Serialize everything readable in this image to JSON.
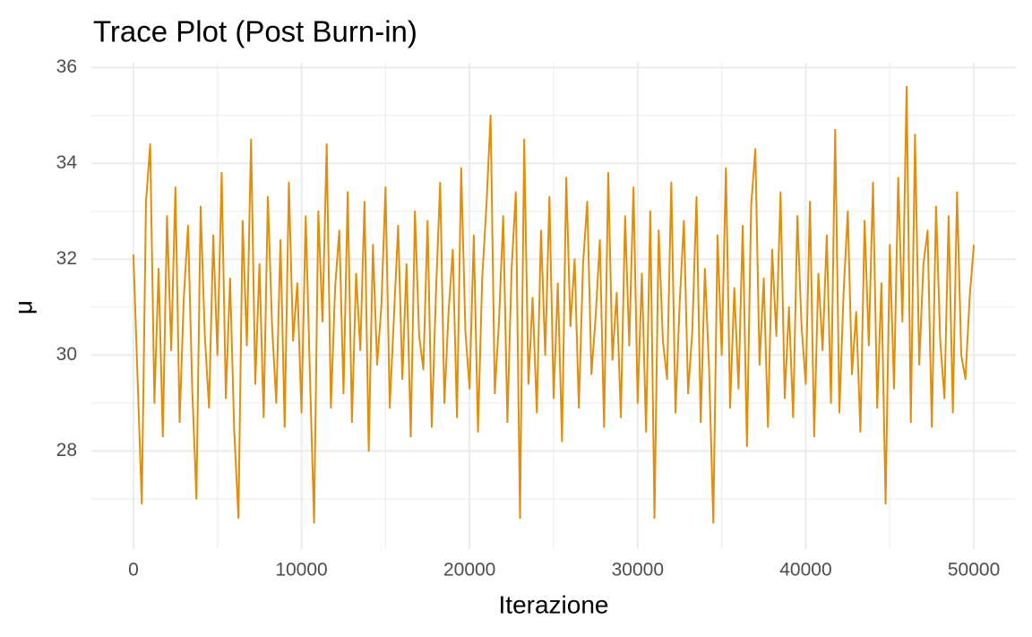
{
  "chart_data": {
    "type": "line",
    "title": "Trace Plot (Post Burn-in)",
    "x_label": "Iterazione",
    "y_label": "μ",
    "color": "#e08e0b",
    "grid": true,
    "xlim": [
      -2500,
      52500
    ],
    "ylim": [
      25.95,
      36.1
    ],
    "xticks": [
      0,
      10000,
      20000,
      30000,
      40000,
      50000
    ],
    "yticks": [
      28,
      30,
      32,
      34,
      36
    ],
    "x": [
      0,
      250,
      500,
      750,
      1000,
      1250,
      1500,
      1750,
      2000,
      2250,
      2500,
      2750,
      3000,
      3250,
      3500,
      3750,
      4000,
      4250,
      4500,
      4750,
      5000,
      5250,
      5500,
      5750,
      6000,
      6250,
      6500,
      6750,
      7000,
      7250,
      7500,
      7750,
      8000,
      8250,
      8500,
      8750,
      9000,
      9250,
      9500,
      9750,
      10000,
      10250,
      10500,
      10750,
      11000,
      11250,
      11500,
      11750,
      12000,
      12250,
      12500,
      12750,
      13000,
      13250,
      13500,
      13750,
      14000,
      14250,
      14500,
      14750,
      15000,
      15250,
      15500,
      15750,
      16000,
      16250,
      16500,
      16750,
      17000,
      17250,
      17500,
      17750,
      18000,
      18250,
      18500,
      18750,
      19000,
      19250,
      19500,
      19750,
      20000,
      20250,
      20500,
      20750,
      21000,
      21250,
      21500,
      21750,
      22000,
      22250,
      22500,
      22750,
      23000,
      23250,
      23500,
      23750,
      24000,
      24250,
      24500,
      24750,
      25000,
      25250,
      25500,
      25750,
      26000,
      26250,
      26500,
      26750,
      27000,
      27250,
      27500,
      27750,
      28000,
      28250,
      28500,
      28750,
      29000,
      29250,
      29500,
      29750,
      30000,
      30250,
      30500,
      30750,
      31000,
      31250,
      31500,
      31750,
      32000,
      32250,
      32500,
      32750,
      33000,
      33250,
      33500,
      33750,
      34000,
      34250,
      34500,
      34750,
      35000,
      35250,
      35500,
      35750,
      36000,
      36250,
      36500,
      36750,
      37000,
      37250,
      37500,
      37750,
      38000,
      38250,
      38500,
      38750,
      39000,
      39250,
      39500,
      39750,
      40000,
      40250,
      40500,
      40750,
      41000,
      41250,
      41500,
      41750,
      42000,
      42250,
      42500,
      42750,
      43000,
      43250,
      43500,
      43750,
      44000,
      44250,
      44500,
      44750,
      45000,
      45250,
      45500,
      45750,
      46000,
      46250,
      46500,
      46750,
      47000,
      47250,
      47500,
      47750,
      48000,
      48250,
      48500,
      48750,
      49000,
      49250,
      49500,
      49750,
      50000
    ],
    "values": [
      32.1,
      29.5,
      26.9,
      33.2,
      34.4,
      29.0,
      31.8,
      28.3,
      32.9,
      30.1,
      33.5,
      28.6,
      31.2,
      32.7,
      29.3,
      27.0,
      33.1,
      30.4,
      28.9,
      32.5,
      30.0,
      33.8,
      29.1,
      31.6,
      28.4,
      26.6,
      32.8,
      30.2,
      34.5,
      29.4,
      31.9,
      28.7,
      33.3,
      30.6,
      29.0,
      32.4,
      28.5,
      33.6,
      30.3,
      31.5,
      28.8,
      32.9,
      29.6,
      26.5,
      33.0,
      30.7,
      34.4,
      28.9,
      31.4,
      32.6,
      29.2,
      33.4,
      28.6,
      31.7,
      30.1,
      33.2,
      28.0,
      32.3,
      29.8,
      31.0,
      33.5,
      28.9,
      30.8,
      32.7,
      29.5,
      31.9,
      28.3,
      33.0,
      30.4,
      29.7,
      32.8,
      28.5,
      31.3,
      33.6,
      29.0,
      30.9,
      32.2,
      28.7,
      33.9,
      30.5,
      29.3,
      32.5,
      28.4,
      31.6,
      33.1,
      35.0,
      29.2,
      30.7,
      32.9,
      28.6,
      31.8,
      33.4,
      26.6,
      34.5,
      29.4,
      31.2,
      28.8,
      32.6,
      30.0,
      33.3,
      29.1,
      31.5,
      28.2,
      33.7,
      30.6,
      32.0,
      28.9,
      31.9,
      33.2,
      29.6,
      30.8,
      32.4,
      28.5,
      33.8,
      29.9,
      31.3,
      28.7,
      32.9,
      30.2,
      33.5,
      29.0,
      31.7,
      28.4,
      33.0,
      26.6,
      32.6,
      30.3,
      29.5,
      33.6,
      28.8,
      31.1,
      32.8,
      29.2,
      30.5,
      33.3,
      28.6,
      31.8,
      29.7,
      26.5,
      32.5,
      30.0,
      33.9,
      28.9,
      31.4,
      29.3,
      32.7,
      28.1,
      33.1,
      34.3,
      29.8,
      31.6,
      28.5,
      32.2,
      30.4,
      33.4,
      29.1,
      31.0,
      28.7,
      32.9,
      30.6,
      29.4,
      33.2,
      28.3,
      31.7,
      30.1,
      32.5,
      29.0,
      34.7,
      28.8,
      31.3,
      33.0,
      29.6,
      30.9,
      28.4,
      32.8,
      30.2,
      33.6,
      28.9,
      31.5,
      26.9,
      32.3,
      29.3,
      33.7,
      30.7,
      35.6,
      28.6,
      34.6,
      29.8,
      31.9,
      32.6,
      28.5,
      33.1,
      30.3,
      29.1,
      32.9,
      28.8,
      33.4,
      30.0,
      29.5,
      31.2,
      32.3
    ]
  }
}
